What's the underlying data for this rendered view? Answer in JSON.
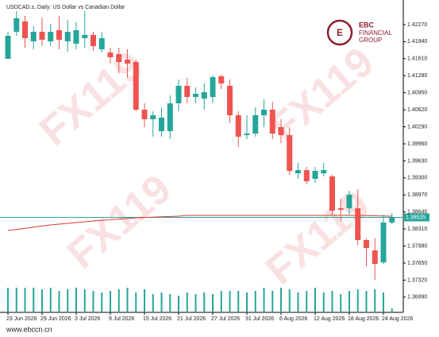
{
  "chart_data": {
    "type": "candlestick",
    "title": "USDCAD.s, Daily:  US Dollar vs Canadian Dollar",
    "watermark": "FX119",
    "logo": {
      "name": "EBC",
      "line1": "FINANCIAL",
      "line2": "GROUP"
    },
    "footer": "www.ebccn.cn",
    "categories": [
      "23 Jun 2026",
      null,
      null,
      null,
      "29 Jun 2026",
      null,
      null,
      null,
      "3 Jul 2026",
      null,
      null,
      null,
      "9 Jul 2026",
      null,
      null,
      null,
      "15 Jul 2026",
      null,
      null,
      null,
      "21 Jul 2026",
      null,
      null,
      null,
      "27 Jul 2026",
      null,
      null,
      null,
      "31 Jul 2026",
      null,
      null,
      null,
      "6 Aug 2026",
      null,
      null,
      null,
      "12 Aug 2026",
      null,
      null,
      null,
      "18 Aug 2026",
      null,
      null,
      null,
      "24 Aug 2026",
      null
    ],
    "open": [
      1.41607,
      1.42131,
      1.42331,
      1.41946,
      1.42131,
      1.41946,
      1.42162,
      1.41946,
      1.419,
      1.42008,
      1.42069,
      1.41792,
      1.41731,
      1.417,
      1.41592,
      1.41546,
      1.40622,
      1.40437,
      1.40206,
      1.40206,
      1.40745,
      1.41084,
      1.40868,
      1.40837,
      1.40868,
      1.41269,
      1.41084,
      1.40514,
      1.40129,
      1.4016,
      1.40514,
      1.40622,
      1.40283,
      1.40129,
      1.3939,
      1.39451,
      1.39282,
      1.3939,
      1.39329,
      1.38712,
      1.38712,
      1.38712,
      1.38096,
      1.37896,
      1.37665,
      1.38435
    ],
    "high": [
      1.42131,
      1.42531,
      1.42439,
      1.42239,
      1.42408,
      1.42285,
      1.42439,
      1.42362,
      1.42316,
      1.42531,
      1.42131,
      1.42131,
      1.41823,
      1.41823,
      1.41792,
      1.41592,
      1.40745,
      1.40591,
      1.40668,
      1.40899,
      1.41207,
      1.41238,
      1.41053,
      1.4113,
      1.41284,
      1.41299,
      1.41207,
      1.40591,
      1.40514,
      1.40668,
      1.40822,
      1.40776,
      1.40437,
      1.40283,
      1.3959,
      1.39513,
      1.39513,
      1.3959,
      1.39359,
      1.38897,
      1.39051,
      1.39081,
      1.38127,
      1.38127,
      1.38589,
      1.38619
    ],
    "low": [
      1.41607,
      1.42054,
      1.41823,
      1.41792,
      1.41854,
      1.41854,
      1.41792,
      1.41746,
      1.41792,
      1.41823,
      1.41761,
      1.41731,
      1.41515,
      1.4133,
      1.41238,
      1.40591,
      1.40283,
      1.40098,
      1.40098,
      1.40052,
      1.40591,
      1.40745,
      1.40745,
      1.40622,
      1.40745,
      1.41022,
      1.4036,
      1.39898,
      1.40052,
      1.40098,
      1.40283,
      1.40052,
      1.39975,
      1.39359,
      1.39282,
      1.39174,
      1.39205,
      1.39329,
      1.38589,
      1.38466,
      1.38589,
      1.38004,
      1.37588,
      1.37326,
      1.37634,
      1.38404
    ],
    "close": [
      1.42054,
      1.42393,
      1.42008,
      1.42131,
      1.41977,
      1.42131,
      1.41977,
      1.42131,
      1.42162,
      1.42069,
      1.41854,
      1.42008,
      1.41638,
      1.41546,
      1.41515,
      1.40622,
      1.40437,
      1.40514,
      1.40468,
      1.40745,
      1.41084,
      1.40868,
      1.4093,
      1.40961,
      1.41253,
      1.4113,
      1.40514,
      1.40098,
      1.4016,
      1.40514,
      1.40622,
      1.4016,
      1.40129,
      1.39436,
      1.39451,
      1.39235,
      1.39436,
      1.39451,
      1.38666,
      1.38681,
      1.38974,
      1.38096,
      1.37942,
      1.37634,
      1.38435,
      1.38535
    ],
    "moving_average": [
      1.38281,
      1.38303,
      1.38324,
      1.38346,
      1.38367,
      1.38389,
      1.38404,
      1.3842,
      1.38435,
      1.38451,
      1.38466,
      1.38478,
      1.3849,
      1.38503,
      1.38515,
      1.38527,
      1.38533,
      1.38539,
      1.38546,
      1.38552,
      1.38558,
      1.38573,
      1.38573,
      1.38573,
      1.38573,
      1.38573,
      1.38573,
      1.38573,
      1.38573,
      1.38573,
      1.38573,
      1.38573,
      1.38573,
      1.38573,
      1.38573,
      1.38573,
      1.38573,
      1.38573,
      1.38573,
      1.38573,
      1.38573,
      1.38573,
      1.3857,
      1.38566,
      1.38562,
      1.38558
    ],
    "volume": [
      30,
      30,
      30,
      30,
      28,
      30,
      26,
      28,
      30,
      28,
      26,
      24,
      26,
      28,
      30,
      24,
      28,
      22,
      24,
      22,
      20,
      24,
      22,
      24,
      22,
      26,
      26,
      26,
      24,
      26,
      30,
      26,
      30,
      28,
      24,
      26,
      30,
      24,
      26,
      22,
      26,
      28,
      26,
      28,
      24,
      4
    ],
    "volume_lim": [
      0,
      40
    ],
    "current_price": 1.38535,
    "up_color": "#26a69a",
    "down_color": "#ef5350",
    "ma_color": "#d9382e",
    "ylim": [
      1.36695,
      1.42593
    ],
    "yticks": [
      {
        "value": 1.4227,
        "label": "1.42270"
      },
      {
        "value": 1.4194,
        "label": "1.41940"
      },
      {
        "value": 1.4161,
        "label": "1.41610"
      },
      {
        "value": 1.4128,
        "label": "1.41280"
      },
      {
        "value": 1.4095,
        "label": "1.40950"
      },
      {
        "value": 1.4062,
        "label": "1.40620"
      },
      {
        "value": 1.4029,
        "label": "1.40290"
      },
      {
        "value": 1.3996,
        "label": "1.39960"
      },
      {
        "value": 1.3963,
        "label": "1.39630"
      },
      {
        "value": 1.393,
        "label": "1.39300"
      },
      {
        "value": 1.3897,
        "label": "1.38970"
      },
      {
        "value": 1.3864,
        "label": "1.38640"
      },
      {
        "value": 1.3831,
        "label": "1.38310"
      },
      {
        "value": 1.3798,
        "label": "1.37980"
      },
      {
        "value": 1.3765,
        "label": "1.37650"
      },
      {
        "value": 1.3732,
        "label": "1.37320"
      },
      {
        "value": 1.3699,
        "label": "1.36990"
      }
    ]
  }
}
